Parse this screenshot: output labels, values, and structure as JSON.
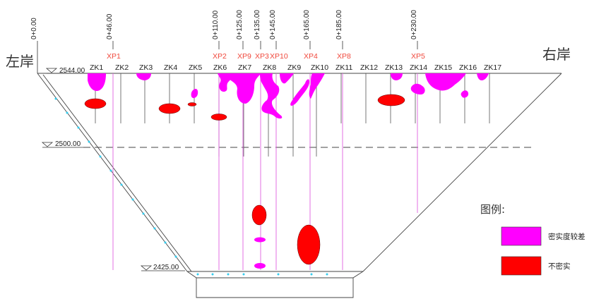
{
  "banks": {
    "left": "左岸",
    "right": "右岸"
  },
  "elevations": [
    {
      "label": "2544.00"
    },
    {
      "label": "2500.00"
    },
    {
      "label": "2425.00"
    }
  ],
  "stations": [
    "0+0.00",
    "0+46.00",
    "0+110.00",
    "0+125.00",
    "0+135.00",
    "0+145.00",
    "0+165.00",
    "0+185.00",
    "0+230.00"
  ],
  "boreholes": [
    "ZK1",
    "ZK2",
    "ZK3",
    "ZK4",
    "ZK5",
    "ZK6",
    "ZK7",
    "ZK8",
    "ZK9",
    "ZK10",
    "ZK11",
    "ZK12",
    "ZK13",
    "ZK14",
    "ZK15",
    "ZK16",
    "ZK17"
  ],
  "inspection_holes": [
    "XP1",
    "XP2",
    "XP9",
    "XP3",
    "XP10",
    "XP4",
    "XP8",
    "XP5"
  ],
  "legend": {
    "title": "图例:",
    "items": [
      {
        "label": "密实度较差",
        "color": "#ff00ff"
      },
      {
        "label": "不密实",
        "color": "#ff0000"
      }
    ]
  },
  "colors": {
    "poor_density": "#ff00ff",
    "not_dense": "#ff0000",
    "xp_label": "#f0483c",
    "xp_line": "#e060e0",
    "drain_dot": "#33ccee"
  }
}
